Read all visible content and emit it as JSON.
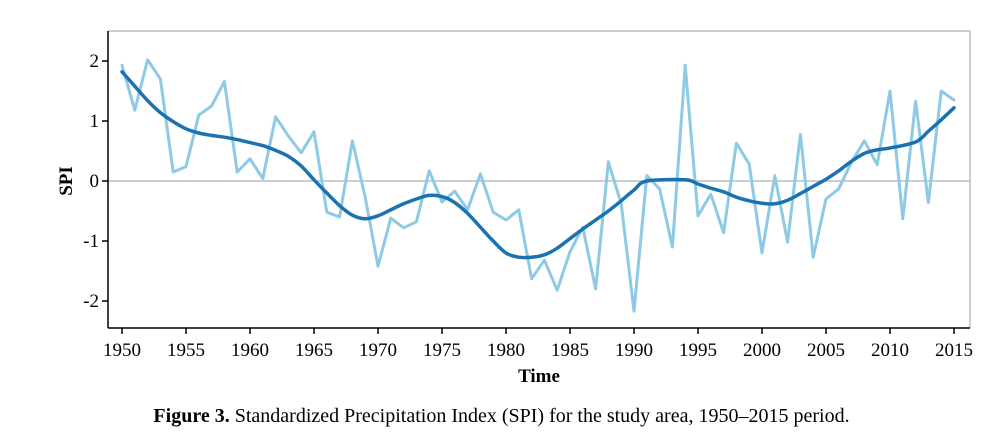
{
  "chart_data": {
    "type": "line",
    "xlabel": "Time",
    "ylabel": "SPI",
    "xlim": [
      1950,
      2015
    ],
    "ylim": [
      -2.45,
      2.5
    ],
    "x_ticks": [
      1950,
      1955,
      1960,
      1965,
      1970,
      1975,
      1980,
      1985,
      1990,
      1995,
      2000,
      2005,
      2010,
      2015
    ],
    "y_ticks": [
      -2,
      -1,
      0,
      1,
      2
    ],
    "x_tick_labels": [
      "1950",
      "1955",
      "1960",
      "1965",
      "1970",
      "1975",
      "1980",
      "1985",
      "1990",
      "1995",
      "2000",
      "2005",
      "2010",
      "2015"
    ],
    "y_tick_labels": [
      "-2",
      "-1",
      "0",
      "1",
      "2"
    ],
    "reference_line_y": 0,
    "grid": false,
    "x": [
      1950,
      1951,
      1952,
      1953,
      1954,
      1955,
      1956,
      1957,
      1958,
      1959,
      1960,
      1961,
      1962,
      1963,
      1964,
      1965,
      1966,
      1967,
      1968,
      1969,
      1970,
      1971,
      1972,
      1973,
      1974,
      1975,
      1976,
      1977,
      1978,
      1979,
      1980,
      1981,
      1982,
      1983,
      1984,
      1985,
      1986,
      1987,
      1988,
      1989,
      1990,
      1991,
      1992,
      1993,
      1994,
      1995,
      1996,
      1997,
      1998,
      1999,
      2000,
      2001,
      2002,
      2003,
      2004,
      2005,
      2006,
      2007,
      2008,
      2009,
      2010,
      2011,
      2012,
      2013,
      2014,
      2015
    ],
    "series": [
      {
        "values": [
          1.93,
          1.18,
          2.02,
          1.7,
          0.15,
          0.24,
          1.1,
          1.25,
          1.66,
          0.15,
          0.37,
          0.04,
          1.07,
          0.75,
          0.47,
          0.82,
          -0.52,
          -0.6,
          0.67,
          -0.27,
          -1.42,
          -0.62,
          -0.78,
          -0.68,
          0.17,
          -0.35,
          -0.17,
          -0.48,
          0.12,
          -0.52,
          -0.65,
          -0.48,
          -1.63,
          -1.32,
          -1.82,
          -1.18,
          -0.77,
          -1.8,
          0.32,
          -0.38,
          -2.17,
          0.09,
          -0.13,
          -1.1,
          1.93,
          -0.58,
          -0.22,
          -0.86,
          0.63,
          0.28,
          -1.2,
          0.09,
          -1.02,
          0.78,
          -1.27,
          -0.3,
          -0.13,
          0.32,
          0.67,
          0.27,
          1.5,
          -0.63,
          1.33,
          -0.36,
          1.5,
          1.35
        ],
        "color": "#8ecae6"
      },
      {
        "values": [
          1.82,
          1.58,
          1.34,
          1.14,
          0.99,
          0.87,
          0.8,
          0.76,
          0.73,
          0.69,
          0.64,
          0.59,
          0.51,
          0.41,
          0.25,
          0.02,
          -0.2,
          -0.41,
          -0.57,
          -0.63,
          -0.58,
          -0.48,
          -0.38,
          -0.3,
          -0.24,
          -0.26,
          -0.36,
          -0.54,
          -0.77,
          -1.0,
          -1.2,
          -1.27,
          -1.27,
          -1.23,
          -1.12,
          -0.96,
          -0.8,
          -0.65,
          -0.5,
          -0.33,
          -0.15,
          0.0,
          0.02,
          -0.05,
          -0.12,
          -0.18,
          -0.27,
          -0.33,
          -0.37,
          -0.38,
          -0.32,
          -0.21,
          -0.09,
          0.03,
          0.17,
          0.33,
          0.46,
          0.52,
          0.55,
          0.65,
          0.83,
          1.02,
          1.22
        ],
        "x": [
          1950,
          1951,
          1952,
          1953,
          1954,
          1955,
          1956,
          1957,
          1958,
          1959,
          1960,
          1961,
          1962,
          1963,
          1964,
          1965,
          1966,
          1967,
          1968,
          1969,
          1970,
          1971,
          1972,
          1973,
          1974,
          1975,
          1976,
          1977,
          1978,
          1979,
          1980,
          1981,
          1982,
          1983,
          1984,
          1985,
          1986,
          1987,
          1988,
          1989,
          1990,
          1991,
          1994,
          1995,
          1996,
          1997,
          1998,
          1999,
          2000,
          2001,
          2002,
          2003,
          2004,
          2005,
          2006,
          2007,
          2008,
          2009,
          2010,
          2012,
          2013,
          2014,
          2015
        ],
        "color": "#1a73b0"
      }
    ]
  },
  "caption": {
    "label": "Figure 3.",
    "text": " Standardized Precipitation Index (SPI) for the study area, 1950–2015 period."
  },
  "colors": {
    "axis": "#000000",
    "frame": "#bdbdbd",
    "reference_line": "#bdbdbd"
  }
}
